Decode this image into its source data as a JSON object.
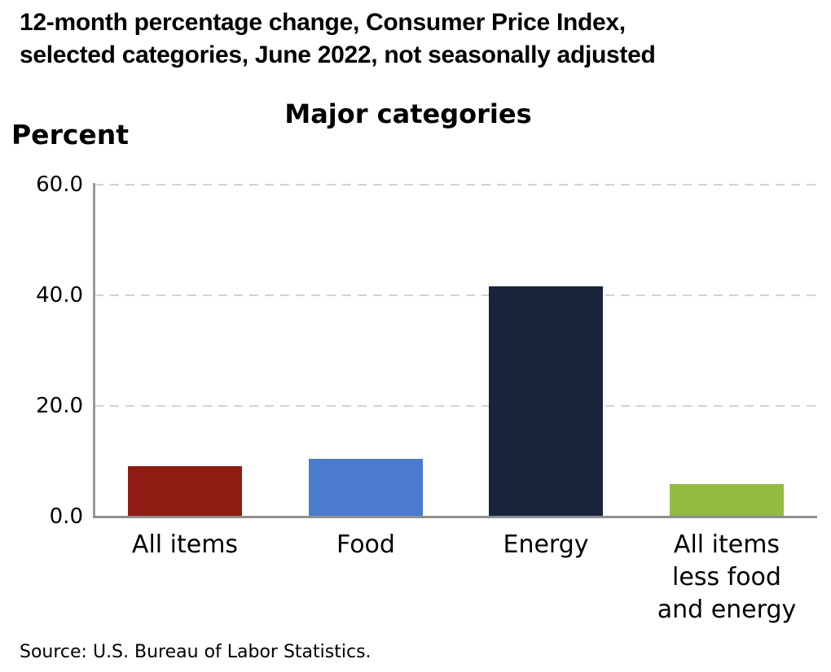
{
  "header": {
    "title": "12-month percentage change, Consumer Price Index,\nselected categories, June 2022, not seasonally adjusted"
  },
  "source": {
    "text": "Source: U.S. Bureau of Labor Statistics."
  },
  "chart_data": {
    "type": "bar",
    "title": "Major categories",
    "ylabel": "Percent",
    "xlabel": "",
    "categories": [
      "All items",
      "Food",
      "Energy",
      "All items\nless food\nand energy"
    ],
    "values": [
      9.1,
      10.4,
      41.6,
      5.9
    ],
    "bar_colors": [
      "#8e1c13",
      "#4a7bce",
      "#17243a",
      "#94ba41"
    ],
    "ylim": [
      0,
      60
    ],
    "yticks": [
      0,
      20,
      40,
      60
    ],
    "ytick_labels": [
      "0.0",
      "20.0",
      "40.0",
      "60.0"
    ],
    "grid": "horizontal-dashed",
    "gridline_color": "#d2d2d2",
    "axis_color": "#9a9a9a",
    "legend": "none"
  }
}
